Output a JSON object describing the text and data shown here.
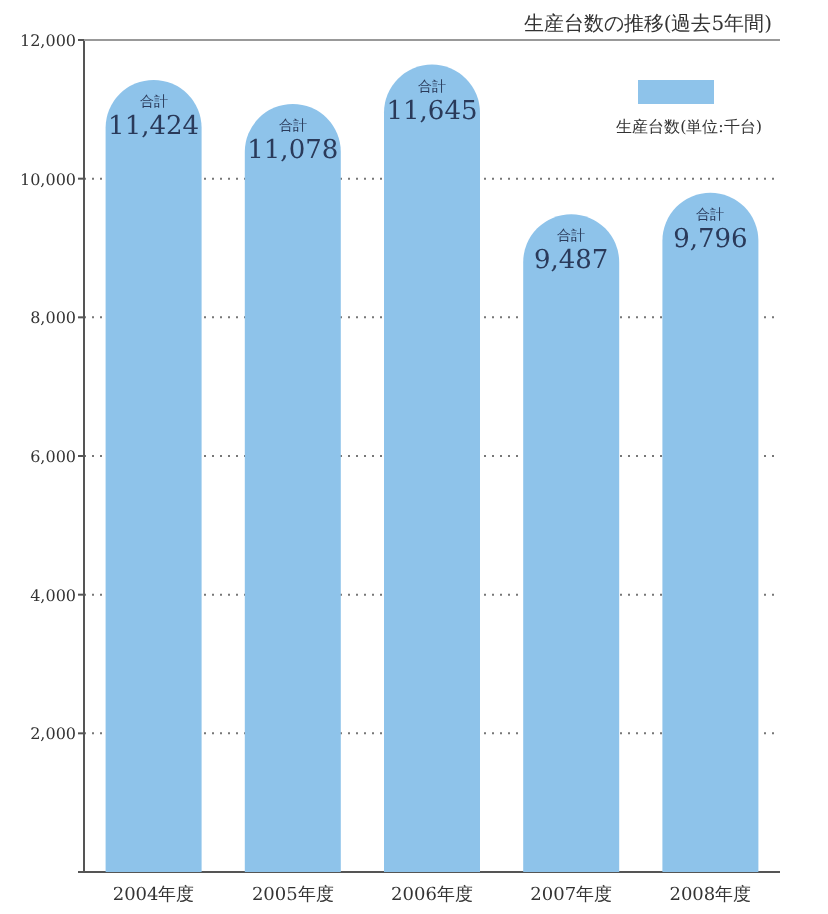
{
  "chart_data": {
    "type": "bar",
    "title": "生産台数の推移(過去5年間)",
    "categories": [
      "2004年度",
      "2005年度",
      "2006年度",
      "2007年度",
      "2008年度"
    ],
    "series": [
      {
        "name": "生産台数(単位:千台)",
        "color": "#8ec3ea",
        "values": [
          11424,
          11078,
          11645,
          9487,
          9796
        ],
        "value_labels": [
          "11,424",
          "11,078",
          "11,645",
          "9,487",
          "9,796"
        ]
      }
    ],
    "ylim": [
      0,
      12000
    ],
    "yticks": [
      {
        "value": 0,
        "label": null
      },
      {
        "value": 2000,
        "label": "2,000"
      },
      {
        "value": 4000,
        "label": "4,000"
      },
      {
        "value": 6000,
        "label": "6,000"
      },
      {
        "value": 8000,
        "label": "8,000"
      },
      {
        "value": 10000,
        "label": "10,000"
      },
      {
        "value": 12000,
        "label": "12,000"
      }
    ],
    "grid": "y",
    "legend": "top right",
    "annotations": [
      {
        "text": "合計",
        "x": "2004年度",
        "y": 11424
      },
      {
        "text": "合計",
        "x": "2005年度",
        "y": 11078
      },
      {
        "text": "合計",
        "x": "2006年度",
        "y": 11645
      },
      {
        "text": "合計",
        "x": "2007年度",
        "y": 9487
      },
      {
        "text": "合計",
        "x": "2008年度",
        "y": 9796
      }
    ]
  }
}
